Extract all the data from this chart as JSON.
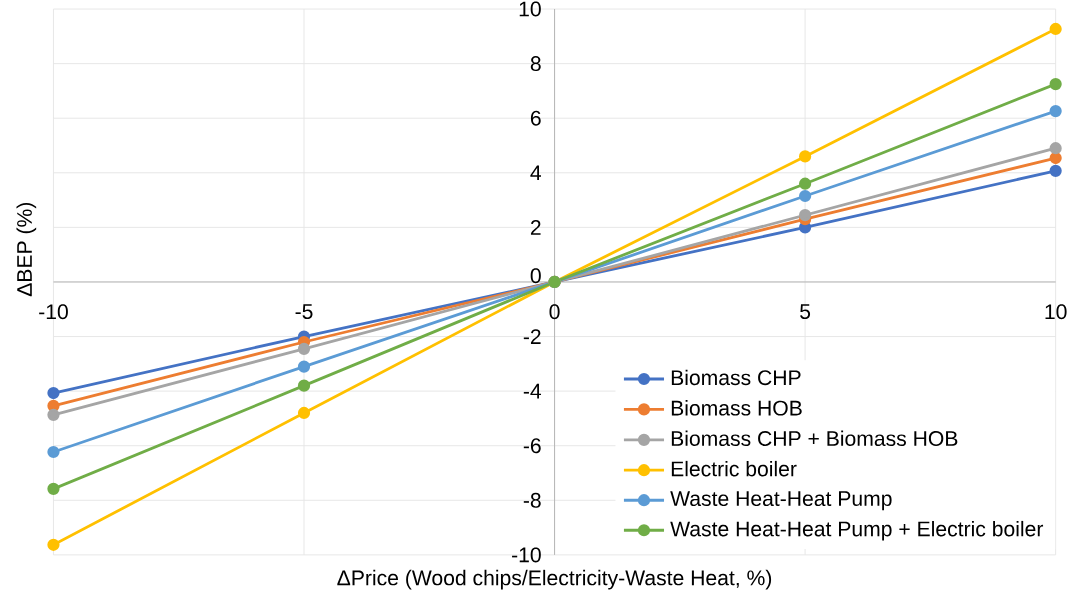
{
  "chart_data": {
    "type": "line",
    "xlabel": "ΔPrice (Wood chips/Electricity-Waste Heat, %)",
    "ylabel": "ΔBEP (%)",
    "x": [
      -10,
      -5,
      0,
      5,
      10
    ],
    "xlim": [
      -10,
      10
    ],
    "ylim": [
      -10,
      10
    ],
    "xticks": [
      -10,
      -5,
      0,
      5,
      10
    ],
    "yticks": [
      -10,
      -8,
      -6,
      -4,
      -2,
      0,
      2,
      4,
      6,
      8,
      10
    ],
    "grid": true,
    "legend": "bottom right",
    "marker": "circle",
    "line_style": "solid",
    "series": [
      {
        "name": "Biomass CHP",
        "color": "#4472c4",
        "values": [
          -4.07,
          -2.0,
          0,
          2.0,
          4.07
        ]
      },
      {
        "name": "Biomass HOB",
        "color": "#ed7d31",
        "values": [
          -4.54,
          -2.2,
          0,
          2.3,
          4.54
        ]
      },
      {
        "name": "Biomass CHP + Biomass HOB",
        "color": "#a5a5a5",
        "values": [
          -4.87,
          -2.45,
          0,
          2.45,
          4.9
        ]
      },
      {
        "name": "Electric boiler",
        "color": "#ffc000",
        "values": [
          -9.63,
          -4.8,
          0,
          4.6,
          9.27
        ]
      },
      {
        "name": "Waste Heat-Heat Pump",
        "color": "#5b9bd5",
        "values": [
          -6.23,
          -3.1,
          0,
          3.15,
          6.26
        ]
      },
      {
        "name": "Waste Heat-Heat Pump + Electric boiler",
        "color": "#70ad47",
        "values": [
          -7.58,
          -3.8,
          0,
          3.6,
          7.25
        ]
      }
    ]
  }
}
